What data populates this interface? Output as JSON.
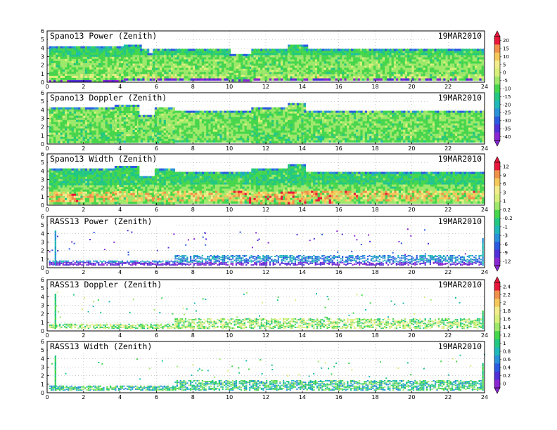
{
  "chart_data": [
    {
      "type": "heatmap",
      "title": "Spano13 Power (Zenith)",
      "date": "19MAR2010",
      "x_range": [
        0,
        24
      ],
      "y_range": [
        0,
        6
      ],
      "x_ticks": [
        "0",
        "2",
        "4",
        "6",
        "8",
        "10",
        "12",
        "14",
        "16",
        "18",
        "20",
        "22",
        "24"
      ],
      "y_ticks": [
        "0",
        "1",
        "2",
        "3",
        "4",
        "5",
        "6"
      ],
      "grid": true,
      "colorbar": {
        "ticks": [
          "20",
          "15",
          "10",
          "5",
          "0",
          "-5",
          "-10",
          "-15",
          "-20",
          "-25",
          "-30",
          "-35",
          "-40"
        ],
        "colors": [
          "#e8183a",
          "#f0904a",
          "#f5c85a",
          "#f2ec8c",
          "#d8f07a",
          "#9ee86a",
          "#46d64c",
          "#22c882",
          "#20b8b8",
          "#2a90d8",
          "#2a5ae0",
          "#5030d8",
          "#8a28d2"
        ]
      },
      "coverage": [
        {
          "x": [
            0.1,
            4.2
          ],
          "top": 4.2
        },
        {
          "x": [
            4.2,
            5.1
          ],
          "top": 4.4
        },
        {
          "x": [
            5.1,
            5.5
          ],
          "top": 3.9
        },
        {
          "x": [
            5.5,
            5.8
          ],
          "top": 3.4
        },
        {
          "x": [
            5.8,
            7.0
          ],
          "top": 3.9
        },
        {
          "x": [
            7.0,
            9.2
          ],
          "top": 3.9
        },
        {
          "x": [
            9.2,
            10.0
          ],
          "top": 3.9
        },
        {
          "x": [
            10.0,
            11.2
          ],
          "top": 3.3
        },
        {
          "x": [
            11.2,
            13.2
          ],
          "top": 3.9
        },
        {
          "x": [
            13.2,
            14.2
          ],
          "top": 4.4
        },
        {
          "x": [
            14.2,
            23.9
          ],
          "top": 3.9
        }
      ],
      "bands": [
        {
          "y": [
            1.6,
            2.2
          ],
          "level": 5
        },
        {
          "y": [
            0.6,
            1.0
          ],
          "level": 4
        }
      ]
    },
    {
      "type": "heatmap",
      "title": "Spano13 Doppler (Zenith)",
      "date": "19MAR2010",
      "x_range": [
        0,
        24
      ],
      "y_range": [
        0,
        6
      ],
      "x_ticks": [
        "0",
        "2",
        "4",
        "6",
        "8",
        "10",
        "12",
        "14",
        "16",
        "18",
        "20",
        "22",
        "24"
      ],
      "y_ticks": [
        "0",
        "1",
        "2",
        "3",
        "4",
        "5",
        "6"
      ],
      "grid": true,
      "coverage": [
        {
          "x": [
            0.1,
            3.7
          ],
          "top": 4.3
        },
        {
          "x": [
            3.7,
            5.0
          ],
          "top": 4.6
        },
        {
          "x": [
            5.0,
            5.9
          ],
          "top": 3.4
        },
        {
          "x": [
            5.9,
            7.0
          ],
          "top": 4.3
        },
        {
          "x": [
            7.0,
            11.2
          ],
          "top": 3.9
        },
        {
          "x": [
            11.2,
            13.2
          ],
          "top": 4.3
        },
        {
          "x": [
            13.2,
            14.1
          ],
          "top": 4.8
        },
        {
          "x": [
            14.1,
            23.9
          ],
          "top": 3.9
        }
      ],
      "bands": [
        {
          "y": [
            0.3,
            1.4
          ],
          "level": 6
        }
      ]
    },
    {
      "type": "heatmap",
      "title": "Spano13 Width (Zenith)",
      "date": "19MAR2010",
      "x_range": [
        0,
        24
      ],
      "y_range": [
        0,
        6
      ],
      "x_ticks": [
        "0",
        "2",
        "4",
        "6",
        "8",
        "10",
        "12",
        "14",
        "16",
        "18",
        "20",
        "22",
        "24"
      ],
      "y_ticks": [
        "0",
        "1",
        "2",
        "3",
        "4",
        "5",
        "6"
      ],
      "grid": true,
      "colorbar": {
        "ticks": [
          "12",
          "9",
          "6",
          "3",
          "1",
          "0.2",
          "-0.2",
          "-1",
          "-3",
          "-6",
          "-9",
          "-12"
        ],
        "colors": [
          "#e8183a",
          "#f0904a",
          "#f5c85a",
          "#f2ec8c",
          "#d8f07a",
          "#9ee86a",
          "#46d64c",
          "#22c882",
          "#20b8b8",
          "#2a90d8",
          "#2a5ae0",
          "#5030d8",
          "#8a28d2"
        ]
      },
      "coverage": [
        {
          "x": [
            0.1,
            3.7
          ],
          "top": 4.3
        },
        {
          "x": [
            3.7,
            5.0
          ],
          "top": 4.6
        },
        {
          "x": [
            5.0,
            5.9
          ],
          "top": 3.4
        },
        {
          "x": [
            5.9,
            7.0
          ],
          "top": 4.3
        },
        {
          "x": [
            7.0,
            11.2
          ],
          "top": 3.9
        },
        {
          "x": [
            11.2,
            13.2
          ],
          "top": 4.3
        },
        {
          "x": [
            13.2,
            14.1
          ],
          "top": 4.8
        },
        {
          "x": [
            14.1,
            23.9
          ],
          "top": 3.9
        }
      ],
      "bands": [
        {
          "y": [
            0.5,
            1.8
          ],
          "level": 2
        }
      ]
    },
    {
      "type": "scatter",
      "title": "RASS13 Power (Zenith)",
      "date": "19MAR2010",
      "x_range": [
        0,
        24
      ],
      "y_range": [
        0,
        6
      ],
      "x_ticks": [
        "0",
        "2",
        "4",
        "6",
        "8",
        "10",
        "12",
        "14",
        "16",
        "18",
        "20",
        "22",
        "24"
      ],
      "y_ticks": [
        "0",
        "1",
        "2",
        "3",
        "4",
        "5",
        "6"
      ],
      "grid": true,
      "layers": [
        {
          "x": [
            0.1,
            7.0
          ],
          "y": [
            0.4,
            0.9
          ],
          "density": 0.55
        },
        {
          "x": [
            7.0,
            23.8
          ],
          "y": [
            0.4,
            1.5
          ],
          "density": 0.45
        }
      ],
      "spikes": [
        {
          "x": 0.45,
          "top": 4.4
        },
        {
          "x": 23.9,
          "top": 3.6
        }
      ]
    },
    {
      "type": "scatter",
      "title": "RASS13 Doppler (Zenith)",
      "date": "19MAR2010",
      "x_range": [
        0,
        24
      ],
      "y_range": [
        0,
        6
      ],
      "x_ticks": [
        "0",
        "2",
        "4",
        "6",
        "8",
        "10",
        "12",
        "14",
        "16",
        "18",
        "20",
        "22",
        "24"
      ],
      "y_ticks": [
        "0",
        "1",
        "2",
        "3",
        "4",
        "5",
        "6"
      ],
      "grid": true,
      "colorbar": {
        "ticks": [
          "2.4",
          "2.2",
          "2",
          "1.8",
          "1.6",
          "1.4",
          "1.2",
          "1",
          "0.8",
          "0.6",
          "0.4",
          "0.2",
          "0"
        ],
        "colors": [
          "#e8183a",
          "#f0904a",
          "#f5c85a",
          "#f2ec8c",
          "#d8f07a",
          "#9ee86a",
          "#46d64c",
          "#22c882",
          "#20b8b8",
          "#2a90d8",
          "#2a5ae0",
          "#5030d8",
          "#8a28d2"
        ]
      },
      "layers": [
        {
          "x": [
            0.1,
            7.0
          ],
          "y": [
            0.4,
            0.9
          ],
          "density": 0.55
        },
        {
          "x": [
            7.0,
            23.8
          ],
          "y": [
            0.4,
            1.5
          ],
          "density": 0.45
        }
      ],
      "spikes": [
        {
          "x": 0.45,
          "top": 4.4
        },
        {
          "x": 23.9,
          "top": 2.5
        }
      ]
    },
    {
      "type": "scatter",
      "title": "RASS13 Width (Zenith)",
      "date": "19MAR2010",
      "x_range": [
        0,
        24
      ],
      "y_range": [
        0,
        6
      ],
      "x_ticks": [
        "0",
        "2",
        "4",
        "6",
        "8",
        "10",
        "12",
        "14",
        "16",
        "18",
        "20",
        "22",
        "24"
      ],
      "y_ticks": [
        "0",
        "1",
        "2",
        "3",
        "4",
        "5",
        "6"
      ],
      "grid": true,
      "layers": [
        {
          "x": [
            0.1,
            7.0
          ],
          "y": [
            0.4,
            0.9
          ],
          "density": 0.55
        },
        {
          "x": [
            7.0,
            23.8
          ],
          "y": [
            0.4,
            1.5
          ],
          "density": 0.45
        }
      ],
      "spikes": [
        {
          "x": 0.45,
          "top": 4.4
        },
        {
          "x": 23.9,
          "top": 3.5
        }
      ]
    }
  ]
}
